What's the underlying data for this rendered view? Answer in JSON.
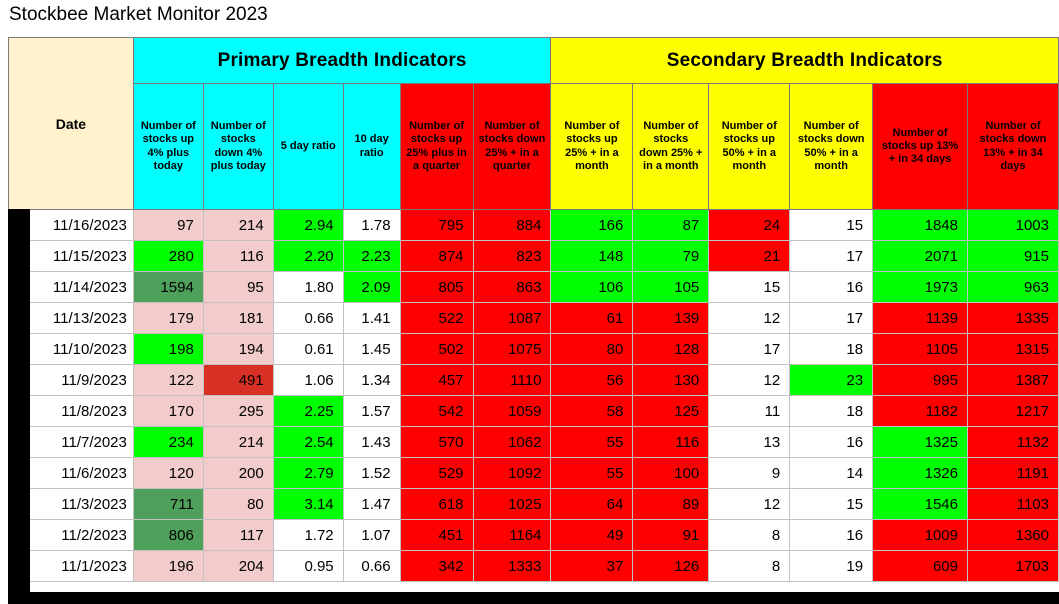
{
  "palette": {
    "cream": "#FFF2CC",
    "cyan": "#00FFFF",
    "yellow": "#FFFF00",
    "red": "#FF0000",
    "darkred": "#D93025",
    "green": "#00FF00",
    "darkgreen": "#4FA05A",
    "pink": "#F2CBCB",
    "white": "#FFFFFF",
    "black": "#000000"
  },
  "title": "Stockbee Market Monitor 2023",
  "table": {
    "date_header": "Date",
    "primary_band": "Primary Breadth Indicators",
    "secondary_band": "Secondary Breadth Indicators",
    "columns": [
      "Number of stocks up 4% plus today",
      "Number of stocks down 4% plus today",
      "5 day ratio",
      "10 day ratio",
      "Number of stocks up 25% plus in a quarter",
      "Number of stocks down 25% + in a quarter",
      "Number of stocks up 25% + in a month",
      "Number of stocks down 25% + in a month",
      "Number of stocks up 50% + in a month",
      "Number of stocks down 50% + in a month",
      "Number of stocks up 13% + in 34 days",
      "Number of stocks down 13% + in 34 days"
    ],
    "rows": [
      {
        "date": "11/16/2023",
        "values": [
          "97",
          "214",
          "2.94",
          "1.78",
          "795",
          "884",
          "166",
          "87",
          "24",
          "15",
          "1848",
          "1003"
        ],
        "colors": [
          "pink",
          "pink",
          "green",
          "white",
          "red",
          "red",
          "green",
          "green",
          "red",
          "white",
          "green",
          "green"
        ]
      },
      {
        "date": "11/15/2023",
        "values": [
          "280",
          "116",
          "2.20",
          "2.23",
          "874",
          "823",
          "148",
          "79",
          "21",
          "17",
          "2071",
          "915"
        ],
        "colors": [
          "green",
          "pink",
          "green",
          "green",
          "red",
          "red",
          "green",
          "green",
          "red",
          "white",
          "green",
          "green"
        ]
      },
      {
        "date": "11/14/2023",
        "values": [
          "1594",
          "95",
          "1.80",
          "2.09",
          "805",
          "863",
          "106",
          "105",
          "15",
          "16",
          "1973",
          "963"
        ],
        "colors": [
          "darkgreen",
          "pink",
          "white",
          "green",
          "red",
          "red",
          "green",
          "green",
          "white",
          "white",
          "green",
          "green"
        ]
      },
      {
        "date": "11/13/2023",
        "values": [
          "179",
          "181",
          "0.66",
          "1.41",
          "522",
          "1087",
          "61",
          "139",
          "12",
          "17",
          "1139",
          "1335"
        ],
        "colors": [
          "pink",
          "pink",
          "white",
          "white",
          "red",
          "red",
          "red",
          "red",
          "white",
          "white",
          "red",
          "red"
        ]
      },
      {
        "date": "11/10/2023",
        "values": [
          "198",
          "194",
          "0.61",
          "1.45",
          "502",
          "1075",
          "80",
          "128",
          "17",
          "18",
          "1105",
          "1315"
        ],
        "colors": [
          "green",
          "pink",
          "white",
          "white",
          "red",
          "red",
          "red",
          "red",
          "white",
          "white",
          "red",
          "red"
        ]
      },
      {
        "date": "11/9/2023",
        "values": [
          "122",
          "491",
          "1.06",
          "1.34",
          "457",
          "1110",
          "56",
          "130",
          "12",
          "23",
          "995",
          "1387"
        ],
        "colors": [
          "pink",
          "darkred",
          "white",
          "white",
          "red",
          "red",
          "red",
          "red",
          "white",
          "green",
          "red",
          "red"
        ]
      },
      {
        "date": "11/8/2023",
        "values": [
          "170",
          "295",
          "2.25",
          "1.57",
          "542",
          "1059",
          "58",
          "125",
          "11",
          "18",
          "1182",
          "1217"
        ],
        "colors": [
          "pink",
          "pink",
          "green",
          "white",
          "red",
          "red",
          "red",
          "red",
          "white",
          "white",
          "red",
          "red"
        ]
      },
      {
        "date": "11/7/2023",
        "values": [
          "234",
          "214",
          "2.54",
          "1.43",
          "570",
          "1062",
          "55",
          "116",
          "13",
          "16",
          "1325",
          "1132"
        ],
        "colors": [
          "green",
          "pink",
          "green",
          "white",
          "red",
          "red",
          "red",
          "red",
          "white",
          "white",
          "green",
          "red"
        ]
      },
      {
        "date": "11/6/2023",
        "values": [
          "120",
          "200",
          "2.79",
          "1.52",
          "529",
          "1092",
          "55",
          "100",
          "9",
          "14",
          "1326",
          "1191"
        ],
        "colors": [
          "pink",
          "pink",
          "green",
          "white",
          "red",
          "red",
          "red",
          "red",
          "white",
          "white",
          "green",
          "red"
        ]
      },
      {
        "date": "11/3/2023",
        "values": [
          "711",
          "80",
          "3.14",
          "1.47",
          "618",
          "1025",
          "64",
          "89",
          "12",
          "15",
          "1546",
          "1103"
        ],
        "colors": [
          "darkgreen",
          "pink",
          "green",
          "white",
          "red",
          "red",
          "red",
          "red",
          "white",
          "white",
          "green",
          "red"
        ]
      },
      {
        "date": "11/2/2023",
        "values": [
          "806",
          "117",
          "1.72",
          "1.07",
          "451",
          "1164",
          "49",
          "91",
          "8",
          "16",
          "1009",
          "1360"
        ],
        "colors": [
          "darkgreen",
          "pink",
          "white",
          "white",
          "red",
          "red",
          "red",
          "red",
          "white",
          "white",
          "red",
          "red"
        ]
      },
      {
        "date": "11/1/2023",
        "values": [
          "196",
          "204",
          "0.95",
          "0.66",
          "342",
          "1333",
          "37",
          "126",
          "8",
          "19",
          "609",
          "1703"
        ],
        "colors": [
          "pink",
          "pink",
          "white",
          "white",
          "red",
          "red",
          "red",
          "red",
          "white",
          "white",
          "red",
          "red"
        ]
      }
    ]
  }
}
